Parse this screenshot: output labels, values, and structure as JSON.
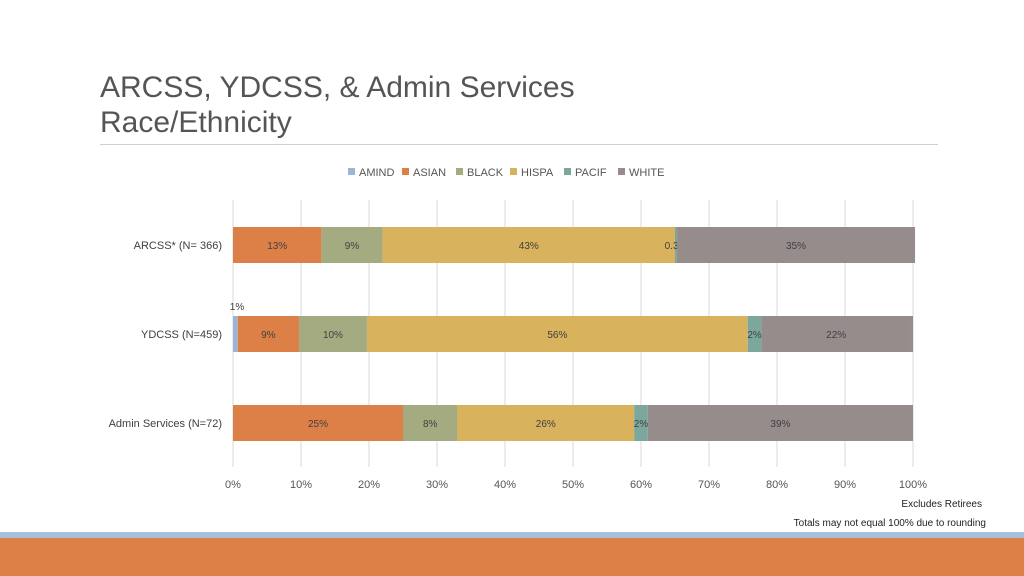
{
  "title": {
    "line1": "ARCSS, YDCSS, & Admin Services",
    "line2": "Race/Ethnicity"
  },
  "notes": {
    "excludes": "Excludes Retirees",
    "rounding": "Totals may not equal 100% due to rounding"
  },
  "chart_data": {
    "type": "bar",
    "orientation": "horizontal",
    "stacked": "percent",
    "title": "",
    "xlabel": "",
    "ylabel": "",
    "xlim": [
      0,
      100
    ],
    "xticks": [
      "0%",
      "10%",
      "20%",
      "30%",
      "40%",
      "50%",
      "60%",
      "70%",
      "80%",
      "90%",
      "100%"
    ],
    "legend_position": "top",
    "grid": true,
    "categories": [
      "ARCSS* (N= 366)",
      "YDCSS (N=459)",
      "Admin Services (N=72)"
    ],
    "series": [
      {
        "name": "AMIND",
        "color": "#9ab5d6",
        "values": [
          0.0,
          0.7,
          0
        ],
        "labels": [
          "",
          "1%",
          ""
        ]
      },
      {
        "name": "ASIAN",
        "color": "#dd8047",
        "values": [
          13,
          9,
          25
        ],
        "labels": [
          "13%",
          "9%",
          "25%"
        ]
      },
      {
        "name": "BLACK",
        "color": "#a5ab81",
        "values": [
          9,
          10,
          8
        ],
        "labels": [
          "9%",
          "10%",
          "8%"
        ]
      },
      {
        "name": "HISPA",
        "color": "#d8b25c",
        "values": [
          43,
          56,
          26
        ],
        "labels": [
          "43%",
          "56%",
          "26%"
        ]
      },
      {
        "name": "PACIF",
        "color": "#7ba79d",
        "values": [
          0.3,
          2,
          2
        ],
        "labels": [
          "0.3%",
          "2%",
          "2%"
        ]
      },
      {
        "name": "WHITE",
        "color": "#968c8c",
        "values": [
          35,
          22,
          39
        ],
        "labels": [
          "35%",
          "22%",
          "39%"
        ]
      }
    ]
  }
}
